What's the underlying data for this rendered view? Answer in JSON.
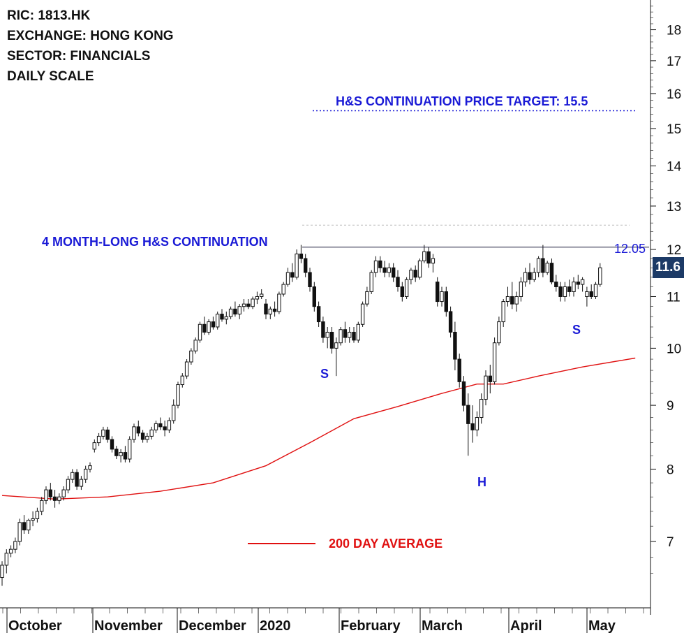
{
  "info": {
    "ric": "RIC: 1813.HK",
    "exchange": "EXCHANGE: HONG KONG",
    "sector": "SECTOR: FINANCIALS",
    "scale": "DAILY SCALE"
  },
  "annotations": {
    "target_label": "H&S CONTINUATION PRICE TARGET: 15.5",
    "pattern_label": "4 MONTH-LONG H&S CONTINUATION",
    "neckline_value": "12.05",
    "ma_label": "200 DAY AVERAGE",
    "left_shoulder": "S",
    "head": "H",
    "right_shoulder": "S",
    "last_price": "11.6"
  },
  "colors": {
    "annotation": "#1a1ad6",
    "moving_average": "#e01010",
    "candle": "#111111",
    "price_badge": "#1c3a66"
  },
  "chart_data": {
    "type": "candlestick",
    "title": "",
    "y_scale": "log",
    "ylim": [
      6.5,
      19
    ],
    "y_ticks": [
      7,
      8,
      9,
      10,
      11,
      12,
      13,
      14,
      15,
      16,
      17,
      18
    ],
    "x_labels": [
      "October",
      "November",
      "December",
      "2020",
      "February",
      "March",
      "April",
      "May"
    ],
    "neckline": 12.05,
    "price_target": 15.5,
    "last_close": 11.6,
    "grid": false,
    "legend": [
      {
        "name": "200 DAY AVERAGE",
        "color": "#e01010",
        "placement": "bottom-center"
      }
    ],
    "ma200_points": [
      [
        0,
        7.62
      ],
      [
        12,
        7.57
      ],
      [
        24,
        7.6
      ],
      [
        36,
        7.68
      ],
      [
        48,
        7.8
      ],
      [
        60,
        8.05
      ],
      [
        70,
        8.4
      ],
      [
        80,
        8.78
      ],
      [
        90,
        8.98
      ],
      [
        100,
        9.2
      ],
      [
        108,
        9.36
      ],
      [
        114,
        9.36
      ],
      [
        122,
        9.5
      ],
      [
        132,
        9.66
      ],
      [
        144,
        9.82
      ]
    ],
    "candles": [
      [
        0,
        6.55,
        6.75,
        6.45,
        6.7
      ],
      [
        1,
        6.7,
        6.9,
        6.6,
        6.85
      ],
      [
        2,
        6.85,
        6.95,
        6.8,
        6.9
      ],
      [
        3,
        6.9,
        7.05,
        6.85,
        7.0
      ],
      [
        4,
        7.0,
        7.3,
        6.95,
        7.25
      ],
      [
        5,
        7.25,
        7.35,
        7.1,
        7.15
      ],
      [
        6,
        7.15,
        7.3,
        7.1,
        7.28
      ],
      [
        7,
        7.28,
        7.4,
        7.2,
        7.3
      ],
      [
        8,
        7.3,
        7.45,
        7.25,
        7.4
      ],
      [
        9,
        7.4,
        7.6,
        7.35,
        7.55
      ],
      [
        10,
        7.55,
        7.75,
        7.5,
        7.7
      ],
      [
        11,
        7.7,
        7.8,
        7.55,
        7.6
      ],
      [
        12,
        7.6,
        7.7,
        7.45,
        7.55
      ],
      [
        13,
        7.55,
        7.65,
        7.5,
        7.6
      ],
      [
        14,
        7.6,
        7.75,
        7.55,
        7.7
      ],
      [
        15,
        7.7,
        7.9,
        7.65,
        7.85
      ],
      [
        16,
        7.85,
        8.0,
        7.8,
        7.95
      ],
      [
        17,
        7.95,
        8.0,
        7.7,
        7.75
      ],
      [
        18,
        7.75,
        7.9,
        7.7,
        7.85
      ],
      [
        19,
        7.85,
        8.05,
        7.8,
        8.0
      ],
      [
        20,
        8.0,
        8.1,
        7.95,
        8.05
      ],
      [
        21,
        8.3,
        8.45,
        8.25,
        8.4
      ],
      [
        22,
        8.4,
        8.55,
        8.35,
        8.5
      ],
      [
        23,
        8.5,
        8.65,
        8.45,
        8.6
      ],
      [
        24,
        8.6,
        8.65,
        8.4,
        8.45
      ],
      [
        25,
        8.45,
        8.5,
        8.25,
        8.3
      ],
      [
        26,
        8.3,
        8.35,
        8.15,
        8.2
      ],
      [
        27,
        8.2,
        8.3,
        8.1,
        8.25
      ],
      [
        28,
        8.25,
        8.35,
        8.1,
        8.15
      ],
      [
        29,
        8.15,
        8.5,
        8.1,
        8.45
      ],
      [
        30,
        8.45,
        8.7,
        8.4,
        8.65
      ],
      [
        31,
        8.65,
        8.75,
        8.5,
        8.55
      ],
      [
        32,
        8.55,
        8.6,
        8.4,
        8.45
      ],
      [
        33,
        8.45,
        8.55,
        8.4,
        8.5
      ],
      [
        34,
        8.5,
        8.65,
        8.45,
        8.6
      ],
      [
        35,
        8.6,
        8.75,
        8.55,
        8.7
      ],
      [
        36,
        8.7,
        8.8,
        8.6,
        8.65
      ],
      [
        37,
        8.65,
        8.75,
        8.5,
        8.6
      ],
      [
        38,
        8.6,
        8.8,
        8.55,
        8.75
      ],
      [
        39,
        8.75,
        9.1,
        8.7,
        9.0
      ],
      [
        40,
        9.0,
        9.4,
        8.95,
        9.35
      ],
      [
        41,
        9.35,
        9.55,
        9.3,
        9.5
      ],
      [
        42,
        9.5,
        9.8,
        9.45,
        9.75
      ],
      [
        43,
        9.75,
        10.0,
        9.7,
        9.95
      ],
      [
        44,
        9.95,
        10.2,
        9.9,
        10.15
      ],
      [
        45,
        10.15,
        10.5,
        10.1,
        10.45
      ],
      [
        46,
        10.45,
        10.6,
        10.25,
        10.3
      ],
      [
        47,
        10.3,
        10.55,
        10.25,
        10.5
      ],
      [
        48,
        10.5,
        10.6,
        10.35,
        10.4
      ],
      [
        49,
        10.4,
        10.7,
        10.35,
        10.65
      ],
      [
        50,
        10.65,
        10.75,
        10.5,
        10.55
      ],
      [
        51,
        10.55,
        10.7,
        10.45,
        10.6
      ],
      [
        52,
        10.6,
        10.8,
        10.55,
        10.75
      ],
      [
        53,
        10.75,
        10.9,
        10.6,
        10.65
      ],
      [
        54,
        10.65,
        10.85,
        10.55,
        10.8
      ],
      [
        55,
        10.8,
        10.95,
        10.7,
        10.85
      ],
      [
        56,
        10.85,
        10.95,
        10.75,
        10.8
      ],
      [
        57,
        10.8,
        11.0,
        10.75,
        10.95
      ],
      [
        58,
        10.95,
        11.1,
        10.85,
        11.0
      ],
      [
        59,
        11.0,
        11.15,
        10.95,
        11.05
      ],
      [
        60,
        10.85,
        10.95,
        10.55,
        10.65
      ],
      [
        61,
        10.65,
        10.8,
        10.55,
        10.75
      ],
      [
        62,
        10.75,
        10.9,
        10.6,
        10.7
      ],
      [
        63,
        10.7,
        11.1,
        10.65,
        11.05
      ],
      [
        64,
        11.05,
        11.3,
        11.0,
        11.25
      ],
      [
        65,
        11.25,
        11.6,
        11.2,
        11.5
      ],
      [
        66,
        11.5,
        11.7,
        11.3,
        11.4
      ],
      [
        67,
        11.4,
        12.0,
        11.35,
        11.9
      ],
      [
        68,
        11.9,
        12.1,
        11.7,
        11.8
      ],
      [
        69,
        11.8,
        11.9,
        11.4,
        11.5
      ],
      [
        70,
        11.5,
        11.6,
        11.1,
        11.2
      ],
      [
        71,
        11.2,
        11.3,
        10.7,
        10.8
      ],
      [
        72,
        10.8,
        10.9,
        10.4,
        10.5
      ],
      [
        73,
        10.5,
        10.6,
        10.1,
        10.2
      ],
      [
        74,
        10.2,
        10.4,
        10.0,
        10.3
      ],
      [
        75,
        10.3,
        10.4,
        9.9,
        10.0
      ],
      [
        76,
        10.0,
        10.2,
        9.5,
        10.1
      ],
      [
        77,
        10.1,
        10.4,
        10.05,
        10.35
      ],
      [
        78,
        10.35,
        10.5,
        10.1,
        10.2
      ],
      [
        79,
        10.2,
        10.4,
        10.1,
        10.3
      ],
      [
        80,
        10.3,
        10.4,
        10.1,
        10.15
      ],
      [
        81,
        10.15,
        10.5,
        10.1,
        10.45
      ],
      [
        82,
        10.45,
        10.9,
        10.4,
        10.85
      ],
      [
        83,
        10.85,
        11.2,
        10.8,
        11.1
      ],
      [
        84,
        11.1,
        11.55,
        11.05,
        11.5
      ],
      [
        85,
        11.5,
        11.85,
        11.4,
        11.75
      ],
      [
        86,
        11.75,
        11.85,
        11.5,
        11.6
      ],
      [
        87,
        11.6,
        11.75,
        11.4,
        11.5
      ],
      [
        88,
        11.5,
        11.7,
        11.4,
        11.6
      ],
      [
        89,
        11.6,
        11.7,
        11.3,
        11.4
      ],
      [
        90,
        11.4,
        11.55,
        11.1,
        11.2
      ],
      [
        91,
        11.2,
        11.3,
        10.9,
        11.0
      ],
      [
        92,
        11.0,
        11.4,
        10.95,
        11.35
      ],
      [
        93,
        11.35,
        11.6,
        11.25,
        11.55
      ],
      [
        94,
        11.55,
        11.65,
        11.3,
        11.4
      ],
      [
        95,
        11.4,
        11.8,
        11.35,
        11.75
      ],
      [
        96,
        11.75,
        12.1,
        11.7,
        11.95
      ],
      [
        97,
        11.95,
        12.05,
        11.6,
        11.7
      ],
      [
        98,
        11.7,
        11.9,
        11.5,
        11.8
      ],
      [
        99,
        11.3,
        11.4,
        10.8,
        10.9
      ],
      [
        100,
        10.9,
        11.2,
        10.8,
        11.1
      ],
      [
        101,
        11.1,
        11.2,
        10.6,
        10.7
      ],
      [
        102,
        10.7,
        10.8,
        10.2,
        10.3
      ],
      [
        103,
        10.3,
        10.5,
        9.6,
        9.8
      ],
      [
        104,
        9.8,
        9.9,
        9.3,
        9.4
      ],
      [
        105,
        9.4,
        9.5,
        8.9,
        9.0
      ],
      [
        106,
        9.0,
        9.2,
        8.2,
        8.7
      ],
      [
        107,
        8.7,
        9.0,
        8.4,
        8.6
      ],
      [
        108,
        8.6,
        8.9,
        8.5,
        8.8
      ],
      [
        109,
        8.8,
        9.2,
        8.7,
        9.1
      ],
      [
        110,
        9.1,
        9.6,
        9.0,
        9.5
      ],
      [
        111,
        9.5,
        9.7,
        9.2,
        9.4
      ],
      [
        112,
        9.4,
        10.2,
        9.35,
        10.1
      ],
      [
        113,
        10.1,
        10.6,
        10.05,
        10.5
      ],
      [
        114,
        10.5,
        10.95,
        10.4,
        10.9
      ],
      [
        115,
        10.9,
        11.2,
        10.8,
        11.0
      ],
      [
        116,
        11.0,
        11.3,
        10.75,
        10.85
      ],
      [
        117,
        10.85,
        11.1,
        10.7,
        11.0
      ],
      [
        118,
        11.0,
        11.4,
        10.9,
        11.3
      ],
      [
        119,
        11.3,
        11.6,
        11.2,
        11.5
      ],
      [
        120,
        11.5,
        11.7,
        11.25,
        11.35
      ],
      [
        121,
        11.35,
        11.6,
        11.3,
        11.5
      ],
      [
        122,
        11.5,
        11.85,
        11.4,
        11.8
      ],
      [
        123,
        11.8,
        12.1,
        11.4,
        11.5
      ],
      [
        124,
        11.5,
        11.75,
        11.45,
        11.7
      ],
      [
        125,
        11.7,
        11.8,
        11.25,
        11.3
      ],
      [
        126,
        11.3,
        11.45,
        11.1,
        11.2
      ],
      [
        127,
        11.2,
        11.3,
        10.9,
        11.0
      ],
      [
        128,
        11.0,
        11.3,
        10.9,
        11.2
      ],
      [
        129,
        11.2,
        11.35,
        11.0,
        11.1
      ],
      [
        130,
        11.1,
        11.4,
        11.0,
        11.3
      ],
      [
        131,
        11.3,
        11.45,
        11.15,
        11.25
      ],
      [
        132,
        11.25,
        11.4,
        11.1,
        11.35
      ],
      [
        133,
        11.0,
        11.2,
        10.8,
        11.1
      ],
      [
        134,
        11.1,
        11.25,
        10.95,
        11.0
      ],
      [
        135,
        11.0,
        11.3,
        10.95,
        11.25
      ],
      [
        136,
        11.25,
        11.7,
        11.2,
        11.6
      ]
    ]
  }
}
